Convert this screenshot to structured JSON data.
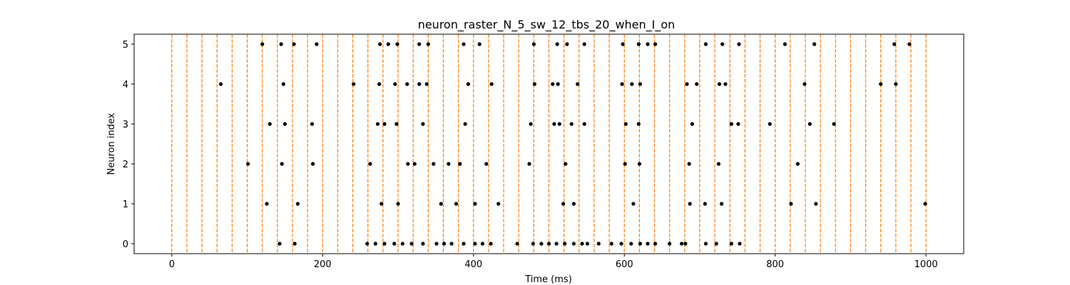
{
  "chart_data": {
    "type": "scatter",
    "title": "neuron_raster_N_5_sw_12_tbs_20_when_I_on",
    "xlabel": "Time (ms)",
    "ylabel": "Neuron index",
    "xlim": [
      -50,
      1050
    ],
    "ylim": [
      -0.25,
      5.25
    ],
    "xticks": [
      0,
      200,
      400,
      600,
      800,
      1000
    ],
    "yticks": [
      0,
      1,
      2,
      3,
      4,
      5
    ],
    "grid": false,
    "marker_color": "#000000",
    "reference_line_color": "#ff7f0e",
    "reference_lines_x": [
      0,
      20,
      40,
      60,
      80,
      100,
      120,
      140,
      160,
      180,
      200,
      220,
      240,
      260,
      280,
      300,
      320,
      340,
      360,
      380,
      400,
      420,
      440,
      460,
      480,
      500,
      520,
      540,
      560,
      580,
      600,
      620,
      640,
      660,
      680,
      700,
      720,
      740,
      760,
      780,
      800,
      820,
      840,
      860,
      880,
      900,
      920,
      940,
      960,
      980,
      1000
    ],
    "series": [
      {
        "neuron": 5,
        "x": [
          120,
          145,
          162,
          192,
          276,
          287,
          299,
          328,
          340,
          387,
          408,
          480,
          511,
          524,
          547,
          598,
          619,
          631,
          641,
          708,
          730,
          752,
          813,
          852,
          958,
          978
        ]
      },
      {
        "neuron": 4,
        "x": [
          65,
          148,
          241,
          275,
          296,
          312,
          328,
          338,
          393,
          424,
          481,
          505,
          512,
          538,
          597,
          610,
          621,
          683,
          696,
          726,
          734,
          839,
          940,
          960
        ]
      },
      {
        "neuron": 3,
        "x": [
          130,
          150,
          186,
          273,
          282,
          298,
          333,
          389,
          476,
          507,
          514,
          530,
          547,
          602,
          619,
          690,
          742,
          751,
          793,
          846,
          878
        ]
      },
      {
        "neuron": 2,
        "x": [
          101,
          146,
          187,
          263,
          313,
          322,
          347,
          367,
          382,
          417,
          474,
          522,
          601,
          620,
          686,
          725,
          830
        ]
      },
      {
        "neuron": 1,
        "x": [
          126,
          167,
          278,
          300,
          357,
          377,
          402,
          433,
          519,
          533,
          612,
          687,
          707,
          729,
          821,
          854,
          999
        ]
      },
      {
        "neuron": 0,
        "x": [
          143,
          163,
          259,
          270,
          282,
          295,
          306,
          318,
          333,
          351,
          361,
          371,
          387,
          402,
          412,
          423,
          458,
          479,
          490,
          500,
          510,
          521,
          533,
          544,
          551,
          566,
          583,
          596,
          609,
          621,
          631,
          641,
          660,
          676,
          681,
          708,
          722,
          742,
          753
        ]
      }
    ]
  }
}
